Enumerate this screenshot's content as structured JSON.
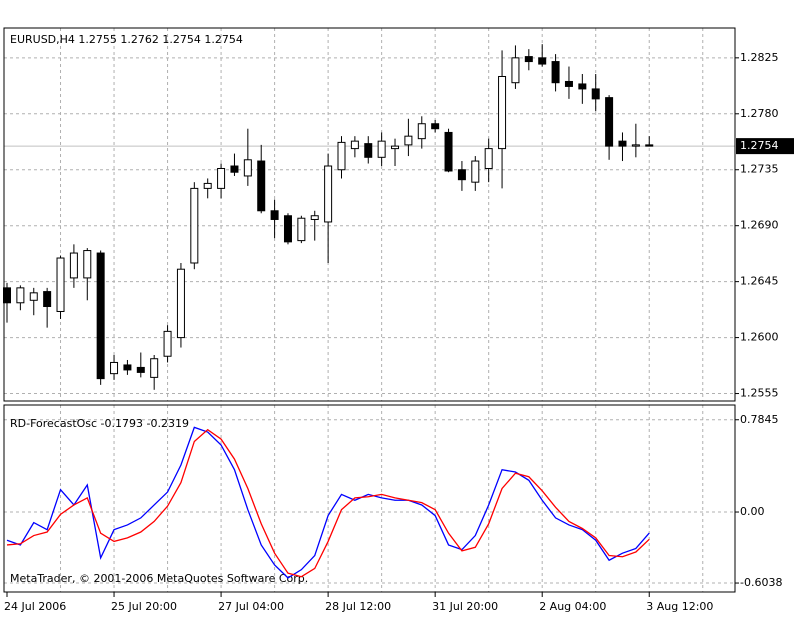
{
  "chart_data": [
    {
      "type": "candlestick",
      "title": "EURUSD,H4  1.2755 1.2762 1.2754 1.2754",
      "categories": [
        "24 Jul 2006",
        null,
        null,
        null,
        null,
        null,
        null,
        null,
        "25 Jul 20:00",
        null,
        null,
        null,
        null,
        null,
        null,
        null,
        "27 Jul 04:00",
        null,
        null,
        null,
        null,
        null,
        null,
        null,
        "28 Jul 12:00",
        null,
        null,
        null,
        null,
        null,
        null,
        null,
        "31 Jul 20:00",
        null,
        null,
        null,
        null,
        null,
        null,
        null,
        "2 Aug 04:00",
        null,
        null,
        null,
        null,
        null,
        null,
        null,
        "3 Aug 12:00"
      ],
      "open": [
        1.264,
        1.2628,
        1.263,
        1.2637,
        1.2621,
        1.2648,
        1.2648,
        1.2668,
        1.2571,
        1.2578,
        1.2576,
        1.2568,
        1.2585,
        1.26,
        1.266,
        1.272,
        1.272,
        1.2738,
        1.273,
        1.2742,
        1.2702,
        1.2698,
        1.2678,
        1.2695,
        1.2693,
        1.2735,
        1.2752,
        1.2756,
        1.2745,
        1.2752,
        1.2755,
        1.276,
        1.2772,
        1.2765,
        1.2735,
        1.2725,
        1.2736,
        1.2752,
        1.2805,
        1.2826,
        1.2825,
        1.2822,
        1.2806,
        1.2804,
        1.28,
        1.2793,
        1.2758,
        1.2754,
        1.2755
      ],
      "high": [
        1.2644,
        1.2642,
        1.264,
        1.264,
        1.2666,
        1.2675,
        1.2672,
        1.267,
        1.2586,
        1.2582,
        1.2588,
        1.2586,
        1.261,
        1.266,
        1.2725,
        1.2728,
        1.274,
        1.2748,
        1.2768,
        1.2755,
        1.2711,
        1.27,
        1.2698,
        1.2702,
        1.2748,
        1.2762,
        1.2762,
        1.2762,
        1.2765,
        1.276,
        1.2776,
        1.2778,
        1.2775,
        1.2768,
        1.2742,
        1.2746,
        1.276,
        1.2831,
        1.2835,
        1.2832,
        1.2836,
        1.2828,
        1.2818,
        1.2812,
        1.2812,
        1.2795,
        1.2765,
        1.2772,
        1.2762
      ],
      "low": [
        1.2612,
        1.2622,
        1.2618,
        1.2608,
        1.2615,
        1.264,
        1.263,
        1.2562,
        1.2566,
        1.257,
        1.2568,
        1.2558,
        1.258,
        1.2592,
        1.2655,
        1.2712,
        1.2712,
        1.273,
        1.2722,
        1.27,
        1.268,
        1.2675,
        1.2676,
        1.2678,
        1.266,
        1.2728,
        1.2745,
        1.274,
        1.2738,
        1.2738,
        1.2746,
        1.2752,
        1.2765,
        1.2733,
        1.2718,
        1.2718,
        1.2725,
        1.272,
        1.28,
        1.2815,
        1.2818,
        1.2798,
        1.2792,
        1.2788,
        1.2782,
        1.2743,
        1.2742,
        1.2745,
        1.2754
      ],
      "close": [
        1.2628,
        1.264,
        1.2636,
        1.2625,
        1.2664,
        1.2668,
        1.267,
        1.2567,
        1.258,
        1.2574,
        1.2572,
        1.2583,
        1.2605,
        1.2655,
        1.272,
        1.2724,
        1.2736,
        1.2733,
        1.2743,
        1.2702,
        1.2695,
        1.2677,
        1.2696,
        1.2698,
        1.2738,
        1.2757,
        1.2758,
        1.2745,
        1.2758,
        1.2754,
        1.2762,
        1.2772,
        1.2768,
        1.2734,
        1.2727,
        1.2742,
        1.2752,
        1.281,
        1.2825,
        1.2822,
        1.282,
        1.2805,
        1.2802,
        1.28,
        1.2792,
        1.2754,
        1.2754,
        1.2755,
        1.2754
      ],
      "up_color": "#ffffff",
      "down_color": "#000000",
      "outline_color": "#000000",
      "ylim": [
        1.2549,
        1.2849
      ],
      "yticks": [
        1.2825,
        {
          "value": 1.278,
          "label": "1.2780"
        },
        1.2735,
        {
          "value": 1.269,
          "label": "1.2690"
        },
        1.2645,
        {
          "value": 1.26,
          "label": "1.2600"
        },
        1.2555
      ],
      "current_price": 1.2754,
      "grid": true
    },
    {
      "type": "line",
      "title": "RD-ForecastOsc -0.1793 -0.2319",
      "series": [
        {
          "color": "#0000ff",
          "values": [
            -0.24,
            -0.28,
            -0.09,
            -0.15,
            0.19,
            0.06,
            0.23,
            -0.39,
            -0.15,
            -0.11,
            -0.05,
            0.06,
            0.17,
            0.4,
            0.72,
            0.68,
            0.57,
            0.36,
            0.02,
            -0.28,
            -0.45,
            -0.56,
            -0.49,
            -0.37,
            -0.03,
            0.15,
            0.1,
            0.15,
            0.12,
            0.1,
            0.1,
            0.06,
            -0.03,
            -0.28,
            -0.32,
            -0.2,
            0.06,
            0.36,
            0.34,
            0.27,
            0.1,
            -0.05,
            -0.11,
            -0.15,
            -0.24,
            -0.41,
            -0.35,
            -0.31,
            -0.1793
          ]
        },
        {
          "color": "#ff0000",
          "values": [
            -0.28,
            -0.27,
            -0.2,
            -0.17,
            -0.02,
            0.06,
            0.12,
            -0.18,
            -0.25,
            -0.22,
            -0.17,
            -0.08,
            0.05,
            0.25,
            0.6,
            0.7,
            0.62,
            0.45,
            0.2,
            -0.1,
            -0.35,
            -0.52,
            -0.55,
            -0.48,
            -0.25,
            0.02,
            0.12,
            0.13,
            0.15,
            0.12,
            0.1,
            0.08,
            0.02,
            -0.18,
            -0.33,
            -0.3,
            -0.1,
            0.2,
            0.33,
            0.3,
            0.18,
            0.04,
            -0.08,
            -0.14,
            -0.22,
            -0.37,
            -0.38,
            -0.34,
            -0.2319
          ]
        }
      ],
      "ylim": [
        -0.68,
        0.91
      ],
      "yticks": [
        0.7845,
        {
          "value": 0,
          "label": "0.00"
        },
        -0.6038
      ],
      "grid": true
    }
  ],
  "footer": "MetaTrader, © 2001-2006 MetaQuotes Software Corp."
}
